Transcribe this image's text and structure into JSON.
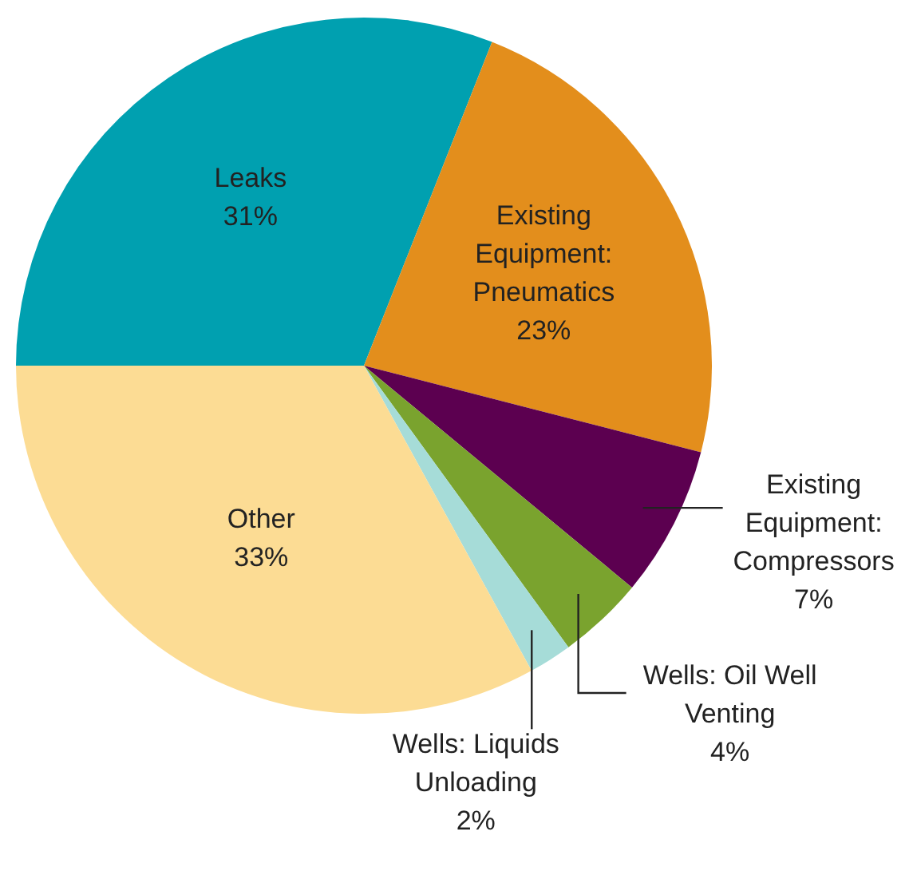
{
  "chart_data": {
    "type": "pie",
    "categories": [
      "Leaks",
      "Existing Equipment: Pneumatics",
      "Existing Equipment: Compressors",
      "Wells: Oil Well Venting",
      "Wells: Liquids Unloading",
      "Other"
    ],
    "values": [
      31,
      23,
      7,
      4,
      2,
      33
    ],
    "value_labels": [
      "31%",
      "23%",
      "7%",
      "4%",
      "2%",
      "33%"
    ],
    "colors": [
      "#00a0b0",
      "#e38e1c",
      "#5c0050",
      "#7aa32e",
      "#a6dcd8",
      "#fcdc94"
    ],
    "legend": false
  }
}
